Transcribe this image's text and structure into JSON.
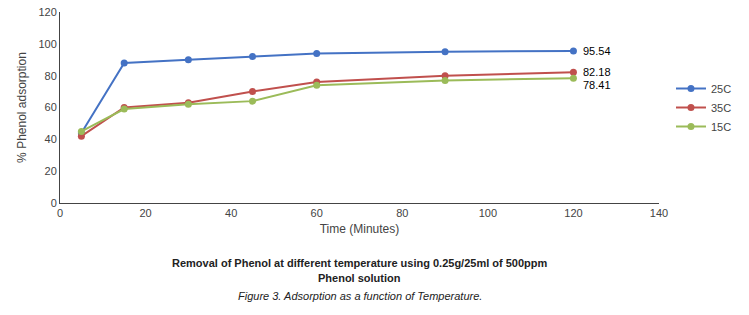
{
  "chart_data": {
    "type": "line",
    "title": "Removal of Phenol at different temperature using 0.25g/25ml of 500ppm",
    "subtitle": "Phenol solution",
    "caption": "Figure 3. Adsorption as a function of Temperature.",
    "xlabel": "Time (Minutes)",
    "ylabel": "% Phenol adsorption",
    "x": [
      5,
      15,
      30,
      45,
      60,
      90,
      120
    ],
    "series": [
      {
        "name": "25C",
        "color": "#4472C4",
        "marker": "circle",
        "line_style": "solid",
        "values": [
          44,
          88,
          90,
          92,
          94,
          95,
          95.54
        ]
      },
      {
        "name": "35C",
        "color": "#C0504D",
        "marker": "circle",
        "line_style": "solid",
        "values": [
          42,
          60,
          63,
          70,
          76,
          80,
          82.18
        ]
      },
      {
        "name": "15C",
        "color": "#9BBB59",
        "marker": "circle",
        "line_style": "solid",
        "values": [
          45,
          59,
          62,
          64,
          74,
          77,
          78.41
        ]
      }
    ],
    "xlim": [
      0,
      140
    ],
    "ylim": [
      0,
      120
    ],
    "xticks": [
      0,
      20,
      40,
      60,
      80,
      100,
      120,
      140
    ],
    "yticks": [
      0,
      20,
      40,
      60,
      80,
      100,
      120
    ],
    "grid": false,
    "legend": "right",
    "annotations": [
      {
        "text": "95.54",
        "x": 120,
        "y": 95.54
      },
      {
        "text": "82.18",
        "x": 120,
        "y": 82.18
      },
      {
        "text": "78.41",
        "x": 120,
        "y": 78.41
      }
    ]
  }
}
